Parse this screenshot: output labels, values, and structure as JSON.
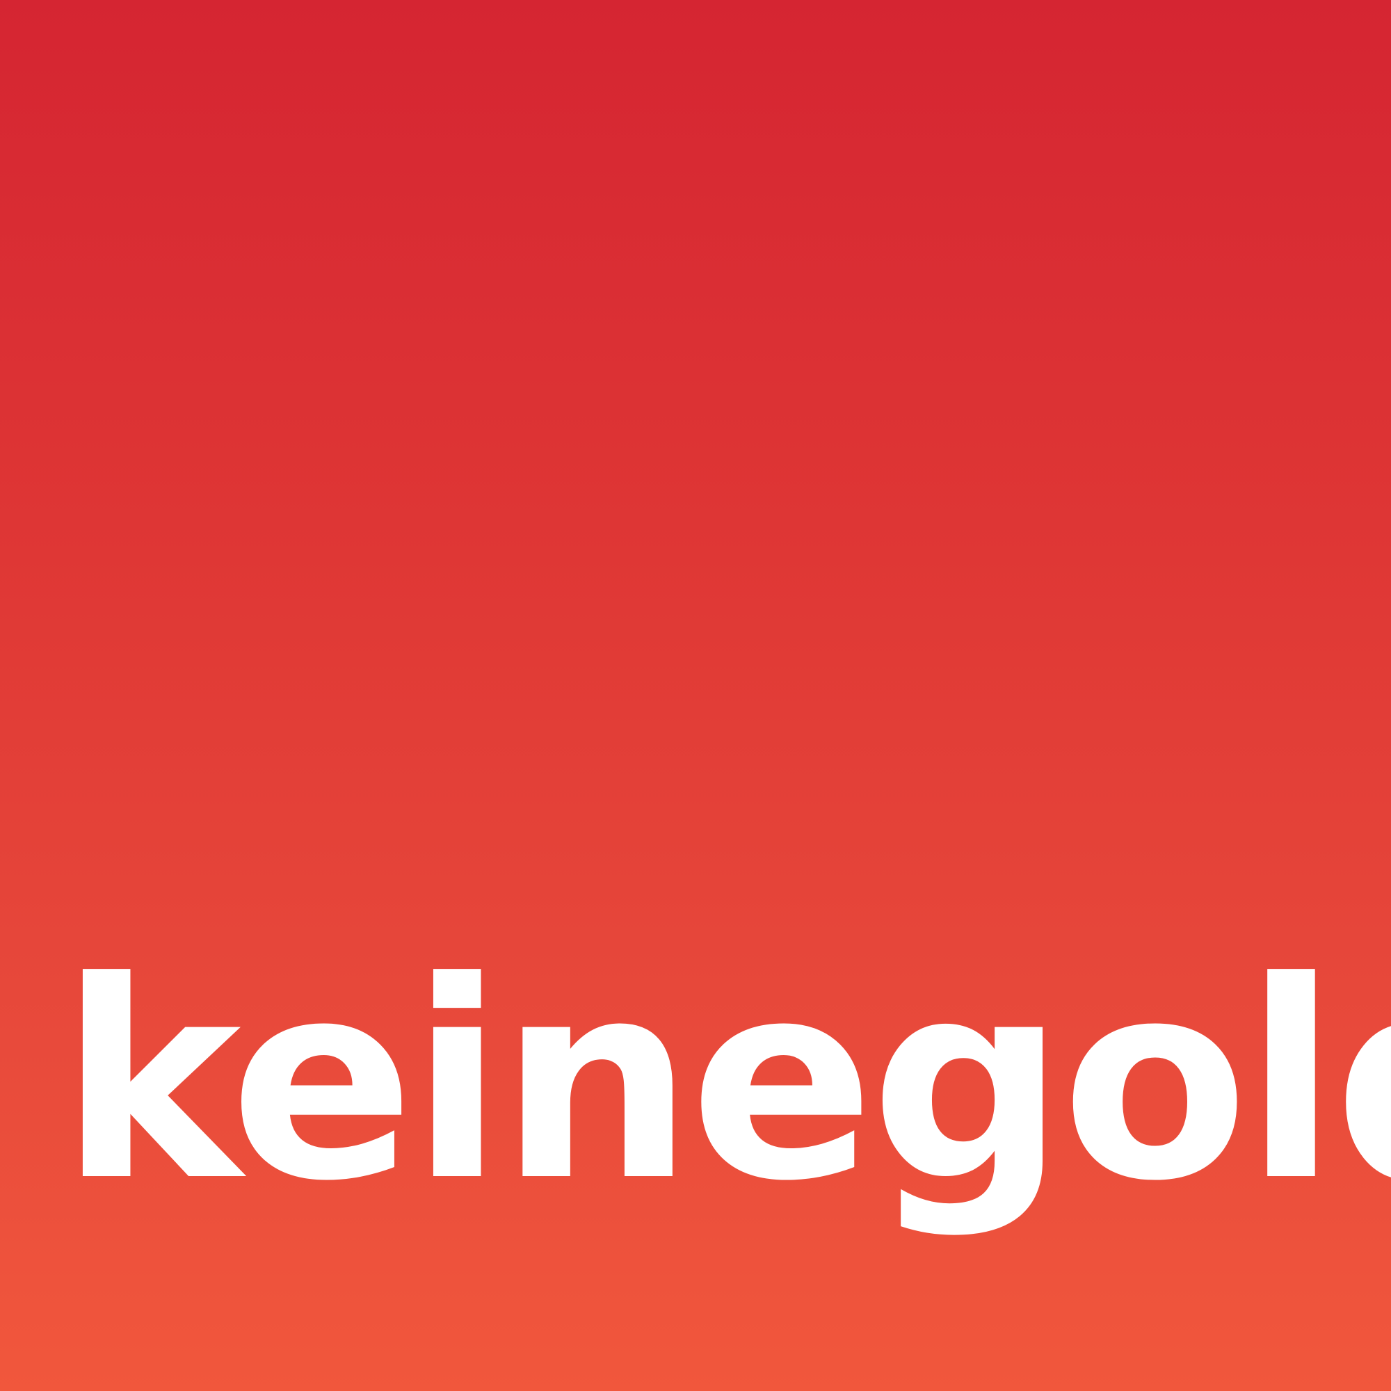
{
  "logo": {
    "wordmark": "keinegold",
    "colors": {
      "gradient_top": "#d52532",
      "gradient_bottom": "#f1573c",
      "text": "#ffffff"
    }
  }
}
